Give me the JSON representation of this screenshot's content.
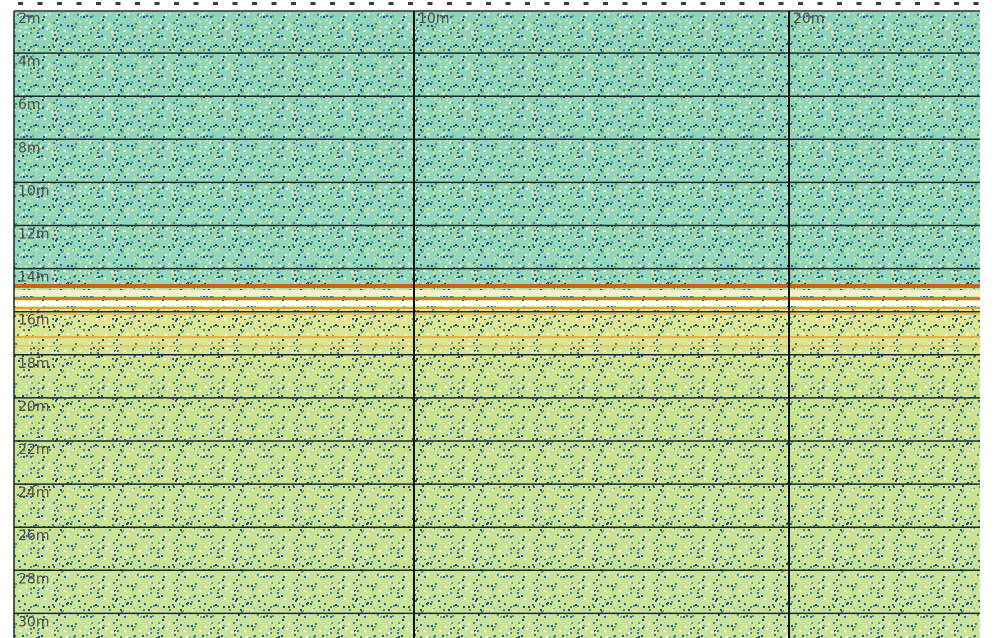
{
  "depth_labels": [
    "2m",
    "4m",
    "6m",
    "8m",
    "10m",
    "12m",
    "14m",
    "16m",
    "18m",
    "20m",
    "22m",
    "24m",
    "26m",
    "28m",
    "30m"
  ],
  "range_labels": [
    "10m",
    "20m"
  ]
}
